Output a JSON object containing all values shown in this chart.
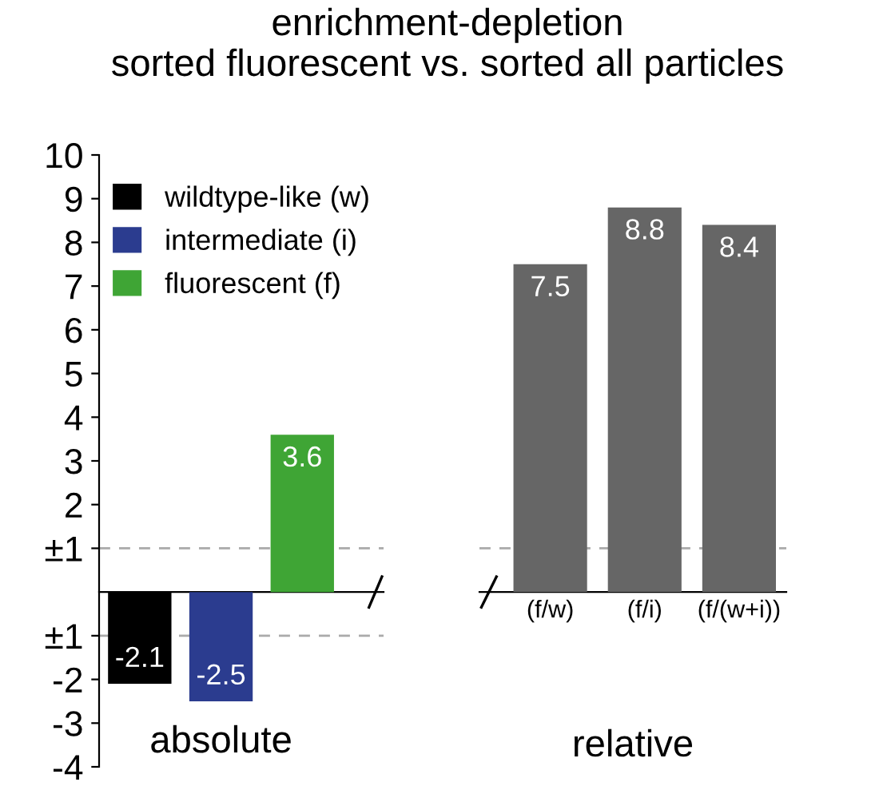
{
  "chart_data": [
    {
      "type": "bar",
      "title": "enrichment-depletion\nsorted fluorescent vs. sorted all particles",
      "xlabel": "absolute",
      "categories": [
        null,
        null,
        null
      ],
      "stacked": true,
      "data_labels": true,
      "legend": "top",
      "series": [
        {
          "name": "wildtype-like (w)",
          "color": "#000000",
          "values": [
            -2.1,
            null,
            null
          ]
        },
        {
          "name": "intermediate (i)",
          "color": "#2b3c8f",
          "values": [
            null,
            -2.5,
            null
          ]
        },
        {
          "name": "fluorescent (f)",
          "color": "#3fa535",
          "values": [
            null,
            null,
            3.6
          ]
        }
      ],
      "ylim": [
        -4,
        10
      ],
      "yticks": [
        10,
        9,
        8,
        7,
        6,
        5,
        4,
        3,
        2,
        {
          "value": 1,
          "label": "±1"
        },
        {
          "value": -1,
          "label": "±1"
        },
        -2,
        -3,
        -4
      ],
      "ref_lines": [
        {
          "axis": "y",
          "value": 1,
          "color": "#aaaaaa",
          "line_style": "dashed"
        },
        {
          "axis": "y",
          "value": -1,
          "color": "#aaaaaa",
          "line_style": "dashed"
        }
      ]
    },
    {
      "type": "bar",
      "xlabel": "relative",
      "categories": [
        "(f/w)",
        "(f/i)",
        "(f/(w+i))"
      ],
      "data_labels": true,
      "tick_labels": "x",
      "series": [
        {
          "color": "#666666",
          "values": [
            7.5,
            8.8,
            8.4
          ]
        }
      ],
      "ref_lines": [
        {
          "axis": "y",
          "value": 1,
          "color": "#aaaaaa",
          "line_style": "dashed"
        }
      ]
    }
  ]
}
